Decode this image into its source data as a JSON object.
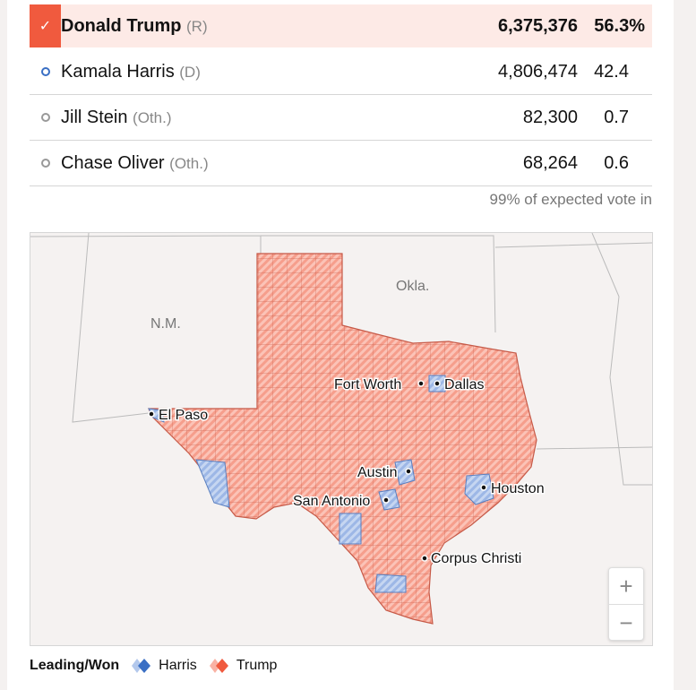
{
  "candidates": [
    {
      "name": "Donald Trump",
      "party": "(R)",
      "votes": "6,375,376",
      "pct": "56.3%",
      "winner": true
    },
    {
      "name": "Kamala Harris",
      "party": "(D)",
      "votes": "4,806,474",
      "pct": "42.4"
    },
    {
      "name": "Jill Stein",
      "party": "(Oth.)",
      "votes": "82,300",
      "pct": "0.7"
    },
    {
      "name": "Chase Oliver",
      "party": "(Oth.)",
      "votes": "68,264",
      "pct": "0.6"
    }
  ],
  "winner_check": "✓",
  "reporting_note": "99% of expected vote in",
  "map": {
    "states": {
      "nm": "N.M.",
      "ok": "Okla."
    },
    "cities": [
      "Fort Worth",
      "Dallas",
      "El Paso",
      "Austin",
      "Houston",
      "San Antonio",
      "Corpus Christi"
    ],
    "zoom_in": "+",
    "zoom_out": "−"
  },
  "legend": {
    "title": "Leading/Won",
    "harris": "Harris",
    "trump": "Trump"
  },
  "colors": {
    "trump": "#f05a3e",
    "harris": "#3a6fc4",
    "trump_fill": "#f9b2a4",
    "harris_fill": "#b3c8ec"
  }
}
